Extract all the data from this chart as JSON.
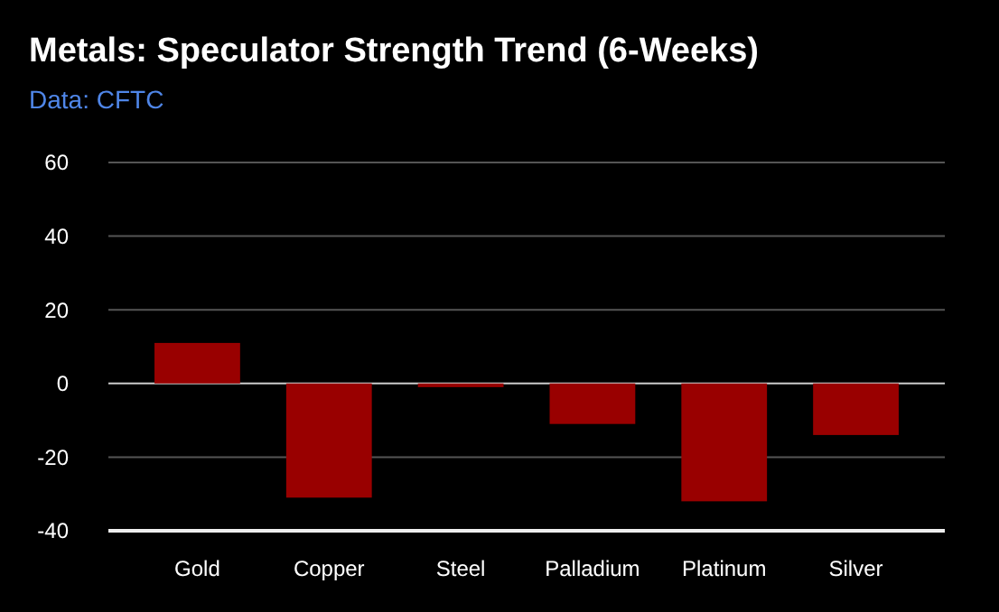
{
  "chart_data": {
    "type": "bar",
    "title": "Metals: Speculator Strength Trend (6-Weeks)",
    "subtitle": "Data: CFTC",
    "categories": [
      "Gold",
      "Copper",
      "Steel",
      "Palladium",
      "Platinum",
      "Silver"
    ],
    "values": [
      11,
      -31,
      -1,
      -11,
      -32,
      -14
    ],
    "color": "#990000",
    "ylim": [
      -40,
      60
    ],
    "yticks": [
      -40,
      -20,
      0,
      20,
      40,
      60
    ],
    "grid": true
  }
}
